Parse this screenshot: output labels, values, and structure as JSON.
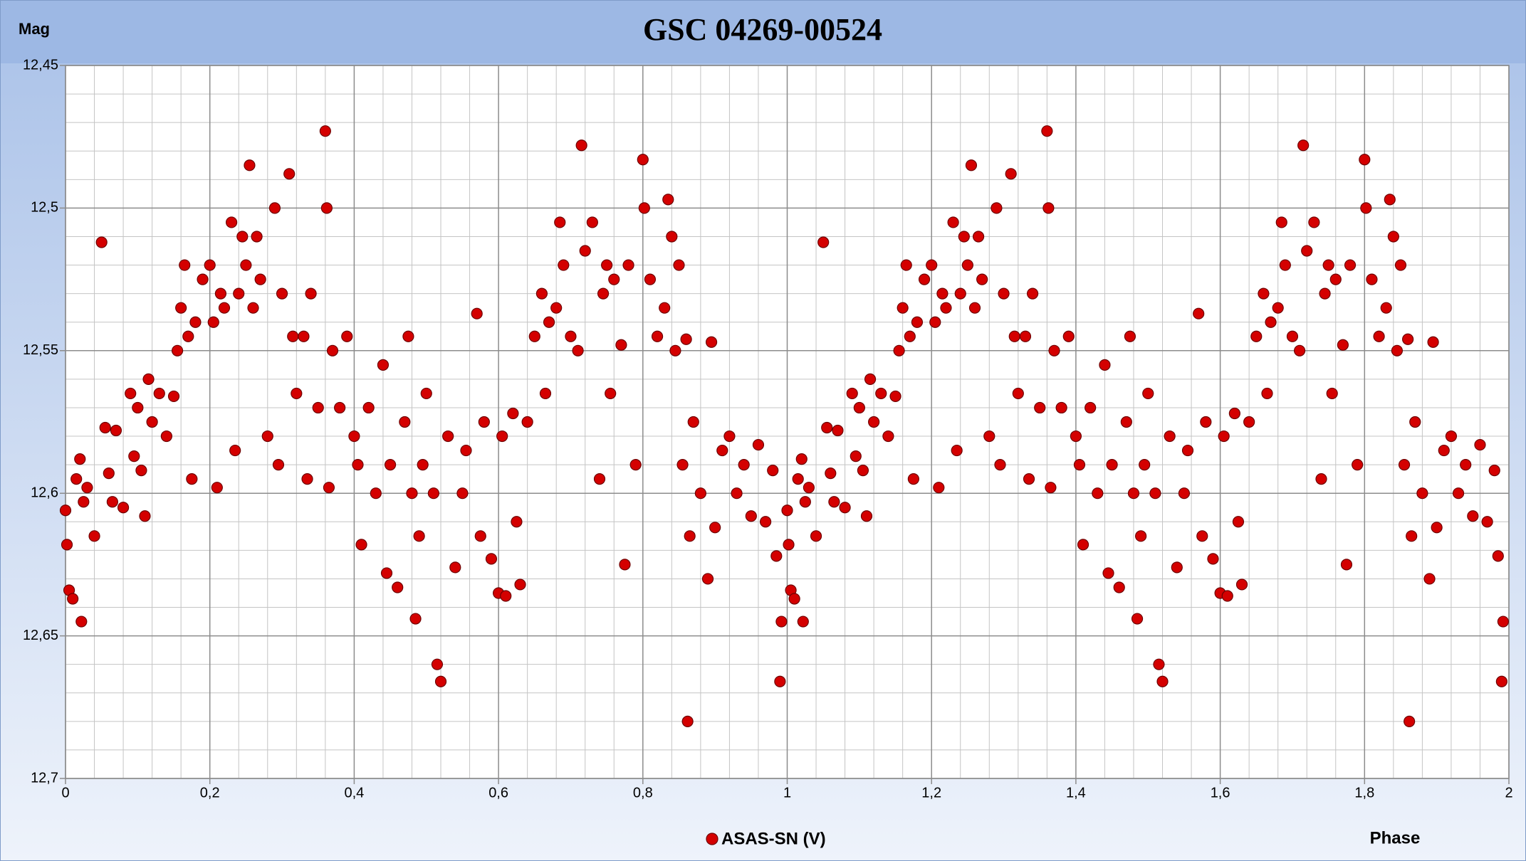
{
  "chart_data": {
    "type": "scatter",
    "title": "GSC 04269-00524",
    "ylabel": "Mag",
    "xlabel": "Phase",
    "xlim": [
      0,
      2
    ],
    "ylim": [
      12.45,
      12.7
    ],
    "y_inverted": true,
    "grid": true,
    "xticks": [
      0,
      {
        "value": 0.2,
        "label": "0,2"
      },
      {
        "value": 0.4,
        "label": "0,4"
      },
      {
        "value": 0.6,
        "label": "0,6"
      },
      {
        "value": 0.8,
        "label": "0,8"
      },
      1,
      {
        "value": 1.2,
        "label": "1,2"
      },
      {
        "value": 1.4,
        "label": "1,4"
      },
      {
        "value": 1.6,
        "label": "1,6"
      },
      {
        "value": 1.8,
        "label": "1,8"
      },
      2
    ],
    "yticks": [
      {
        "value": 12.45,
        "label": "12,45"
      },
      {
        "value": 12.5,
        "label": "12,5"
      },
      {
        "value": 12.55,
        "label": "12,55"
      },
      {
        "value": 12.6,
        "label": "12,6"
      },
      {
        "value": 12.65,
        "label": "12,65"
      },
      {
        "value": 12.7,
        "label": "12,7"
      }
    ],
    "xminorticks": [
      0.04,
      0.08,
      0.12,
      0.16,
      0.24,
      0.28,
      0.32,
      0.36,
      0.44,
      0.48,
      0.52,
      0.56,
      0.64,
      0.68,
      0.72,
      0.76,
      0.84,
      0.88,
      0.92,
      0.96,
      1.04,
      1.08,
      1.12,
      1.16,
      1.24,
      1.28,
      1.32,
      1.36,
      1.44,
      1.48,
      1.52,
      1.56,
      1.64,
      1.68,
      1.72,
      1.76,
      1.84,
      1.88,
      1.92,
      1.96
    ],
    "yminorticks": [
      12.46,
      12.47,
      12.48,
      12.49,
      12.51,
      12.52,
      12.53,
      12.54,
      12.56,
      12.57,
      12.58,
      12.59,
      12.61,
      12.62,
      12.63,
      12.64,
      12.66,
      12.67,
      12.68,
      12.69
    ],
    "series": [
      {
        "name": "ASAS-SN (V)",
        "color": "#d40000",
        "x": [
          0,
          0.002,
          0.005,
          0.01,
          0.015,
          0.02,
          0.022,
          0.025,
          0.03,
          0.04,
          0.05,
          0.055,
          0.06,
          0.065,
          0.07,
          0.08,
          0.09,
          0.095,
          0.1,
          0.105,
          0.11,
          0.115,
          0.12,
          0.13,
          0.14,
          0.15,
          0.155,
          0.16,
          0.165,
          0.17,
          0.175,
          0.18,
          0.19,
          0.2,
          0.205,
          0.21,
          0.215,
          0.22,
          0.23,
          0.235,
          0.24,
          0.245,
          0.25,
          0.255,
          0.26,
          0.265,
          0.27,
          0.28,
          0.29,
          0.295,
          0.3,
          0.31,
          0.315,
          0.32,
          0.33,
          0.335,
          0.34,
          0.35,
          0.36,
          0.362,
          0.365,
          0.37,
          0.38,
          0.39,
          0.4,
          0.405,
          0.41,
          0.42,
          0.43,
          0.44,
          0.445,
          0.45,
          0.46,
          0.47,
          0.475,
          0.48,
          0.485,
          0.49,
          0.495,
          0.5,
          0.51,
          0.515,
          0.52,
          0.53,
          0.54,
          0.55,
          0.555,
          0.57,
          0.575,
          0.58,
          0.59,
          0.6,
          0.605,
          0.61,
          0.62,
          0.625,
          0.63,
          0.64,
          0.65,
          0.66,
          0.665,
          0.67,
          0.68,
          0.685,
          0.69,
          0.7,
          0.71,
          0.715,
          0.72,
          0.73,
          0.74,
          0.745,
          0.75,
          0.755,
          0.76,
          0.77,
          0.775,
          0.78,
          0.79,
          0.8,
          0.802,
          0.81,
          0.82,
          0.83,
          0.835,
          0.84,
          0.845,
          0.85,
          0.855,
          0.86,
          0.862,
          0.865,
          0.87,
          0.88,
          0.89,
          0.895,
          0.9,
          0.91,
          0.92,
          0.93,
          0.94,
          0.95,
          0.96,
          0.97,
          0.98,
          0.985,
          0.99,
          0.992,
          1,
          1.002,
          1.005,
          1.01,
          1.015,
          1.02,
          1.022,
          1.025,
          1.03,
          1.04,
          1.05,
          1.055,
          1.06,
          1.065,
          1.07,
          1.08,
          1.09,
          1.095,
          1.1,
          1.105,
          1.11,
          1.115,
          1.12,
          1.13,
          1.14,
          1.15,
          1.155,
          1.16,
          1.165,
          1.17,
          1.175,
          1.18,
          1.19,
          1.2,
          1.205,
          1.21,
          1.215,
          1.22,
          1.23,
          1.235,
          1.24,
          1.245,
          1.25,
          1.255,
          1.26,
          1.265,
          1.27,
          1.28,
          1.29,
          1.295,
          1.3,
          1.31,
          1.315,
          1.32,
          1.33,
          1.335,
          1.34,
          1.35,
          1.36,
          1.362,
          1.365,
          1.37,
          1.38,
          1.39,
          1.4,
          1.405,
          1.41,
          1.42,
          1.43,
          1.44,
          1.445,
          1.45,
          1.46,
          1.47,
          1.475,
          1.48,
          1.485,
          1.49,
          1.495,
          1.5,
          1.51,
          1.515,
          1.52,
          1.53,
          1.54,
          1.55,
          1.555,
          1.57,
          1.575,
          1.58,
          1.59,
          1.6,
          1.605,
          1.61,
          1.62,
          1.625,
          1.63,
          1.64,
          1.65,
          1.66,
          1.665,
          1.67,
          1.68,
          1.685,
          1.69,
          1.7,
          1.71,
          1.715,
          1.72,
          1.73,
          1.74,
          1.745,
          1.75,
          1.755,
          1.76,
          1.77,
          1.775,
          1.78,
          1.79,
          1.8,
          1.802,
          1.81,
          1.82,
          1.83,
          1.835,
          1.84,
          1.845,
          1.85,
          1.855,
          1.86,
          1.862,
          1.865,
          1.87,
          1.88,
          1.89,
          1.895,
          1.9,
          1.91,
          1.92,
          1.93,
          1.94,
          1.95,
          1.96,
          1.97,
          1.98,
          1.985,
          1.99,
          1.992
        ],
        "values": [
          12.606,
          12.618,
          12.634,
          12.637,
          12.595,
          12.588,
          12.645,
          12.603,
          12.598,
          12.615,
          12.512,
          12.577,
          12.593,
          12.603,
          12.578,
          12.605,
          12.565,
          12.587,
          12.57,
          12.592,
          12.608,
          12.56,
          12.575,
          12.565,
          12.58,
          12.566,
          12.55,
          12.535,
          12.52,
          12.545,
          12.595,
          12.54,
          12.525,
          12.52,
          12.54,
          12.598,
          12.53,
          12.535,
          12.505,
          12.585,
          12.53,
          12.51,
          12.52,
          12.485,
          12.535,
          12.51,
          12.525,
          12.58,
          12.5,
          12.59,
          12.53,
          12.488,
          12.545,
          12.565,
          12.545,
          12.595,
          12.53,
          12.57,
          12.473,
          12.5,
          12.598,
          12.55,
          12.57,
          12.545,
          12.58,
          12.59,
          12.618,
          12.57,
          12.6,
          12.555,
          12.628,
          12.59,
          12.633,
          12.575,
          12.545,
          12.6,
          12.644,
          12.615,
          12.59,
          12.565,
          12.6,
          12.66,
          12.666,
          12.58,
          12.626,
          12.6,
          12.585,
          12.537,
          12.615,
          12.575,
          12.623,
          12.635,
          12.58,
          12.636,
          12.572,
          12.61,
          12.632,
          12.575,
          12.545,
          12.53,
          12.565,
          12.54,
          12.535,
          12.505,
          12.52,
          12.545,
          12.55,
          12.478,
          12.515,
          12.505,
          12.595,
          12.53,
          12.52,
          12.565,
          12.525,
          12.548,
          12.625,
          12.52,
          12.59,
          12.483,
          12.5,
          12.525,
          12.545,
          12.535,
          12.497,
          12.51,
          12.55,
          12.52,
          12.59,
          12.546,
          12.68,
          12.615,
          12.575,
          12.6,
          12.63,
          12.547,
          12.612,
          12.585,
          12.58,
          12.6,
          12.59,
          12.608,
          12.583,
          12.61,
          12.592,
          12.622,
          12.666,
          12.645,
          12.606,
          12.618,
          12.634,
          12.637,
          12.595,
          12.588,
          12.645,
          12.603,
          12.598,
          12.615,
          12.512,
          12.577,
          12.593,
          12.603,
          12.578,
          12.605,
          12.565,
          12.587,
          12.57,
          12.592,
          12.608,
          12.56,
          12.575,
          12.565,
          12.58,
          12.566,
          12.55,
          12.535,
          12.52,
          12.545,
          12.595,
          12.54,
          12.525,
          12.52,
          12.54,
          12.598,
          12.53,
          12.535,
          12.505,
          12.585,
          12.53,
          12.51,
          12.52,
          12.485,
          12.535,
          12.51,
          12.525,
          12.58,
          12.5,
          12.59,
          12.53,
          12.488,
          12.545,
          12.565,
          12.545,
          12.595,
          12.53,
          12.57,
          12.473,
          12.5,
          12.598,
          12.55,
          12.57,
          12.545,
          12.58,
          12.59,
          12.618,
          12.57,
          12.6,
          12.555,
          12.628,
          12.59,
          12.633,
          12.575,
          12.545,
          12.6,
          12.644,
          12.615,
          12.59,
          12.565,
          12.6,
          12.66,
          12.666,
          12.58,
          12.626,
          12.6,
          12.585,
          12.537,
          12.615,
          12.575,
          12.623,
          12.635,
          12.58,
          12.636,
          12.572,
          12.61,
          12.632,
          12.575,
          12.545,
          12.53,
          12.565,
          12.54,
          12.535,
          12.505,
          12.52,
          12.545,
          12.55,
          12.478,
          12.515,
          12.505,
          12.595,
          12.53,
          12.52,
          12.565,
          12.525,
          12.548,
          12.625,
          12.52,
          12.59,
          12.483,
          12.5,
          12.525,
          12.545,
          12.535,
          12.497,
          12.51,
          12.55,
          12.52,
          12.59,
          12.546,
          12.68,
          12.615,
          12.575,
          12.6,
          12.63,
          12.547,
          12.612,
          12.585,
          12.58,
          12.6,
          12.59,
          12.608,
          12.583,
          12.61,
          12.592,
          12.622,
          12.666,
          12.645
        ]
      }
    ]
  }
}
